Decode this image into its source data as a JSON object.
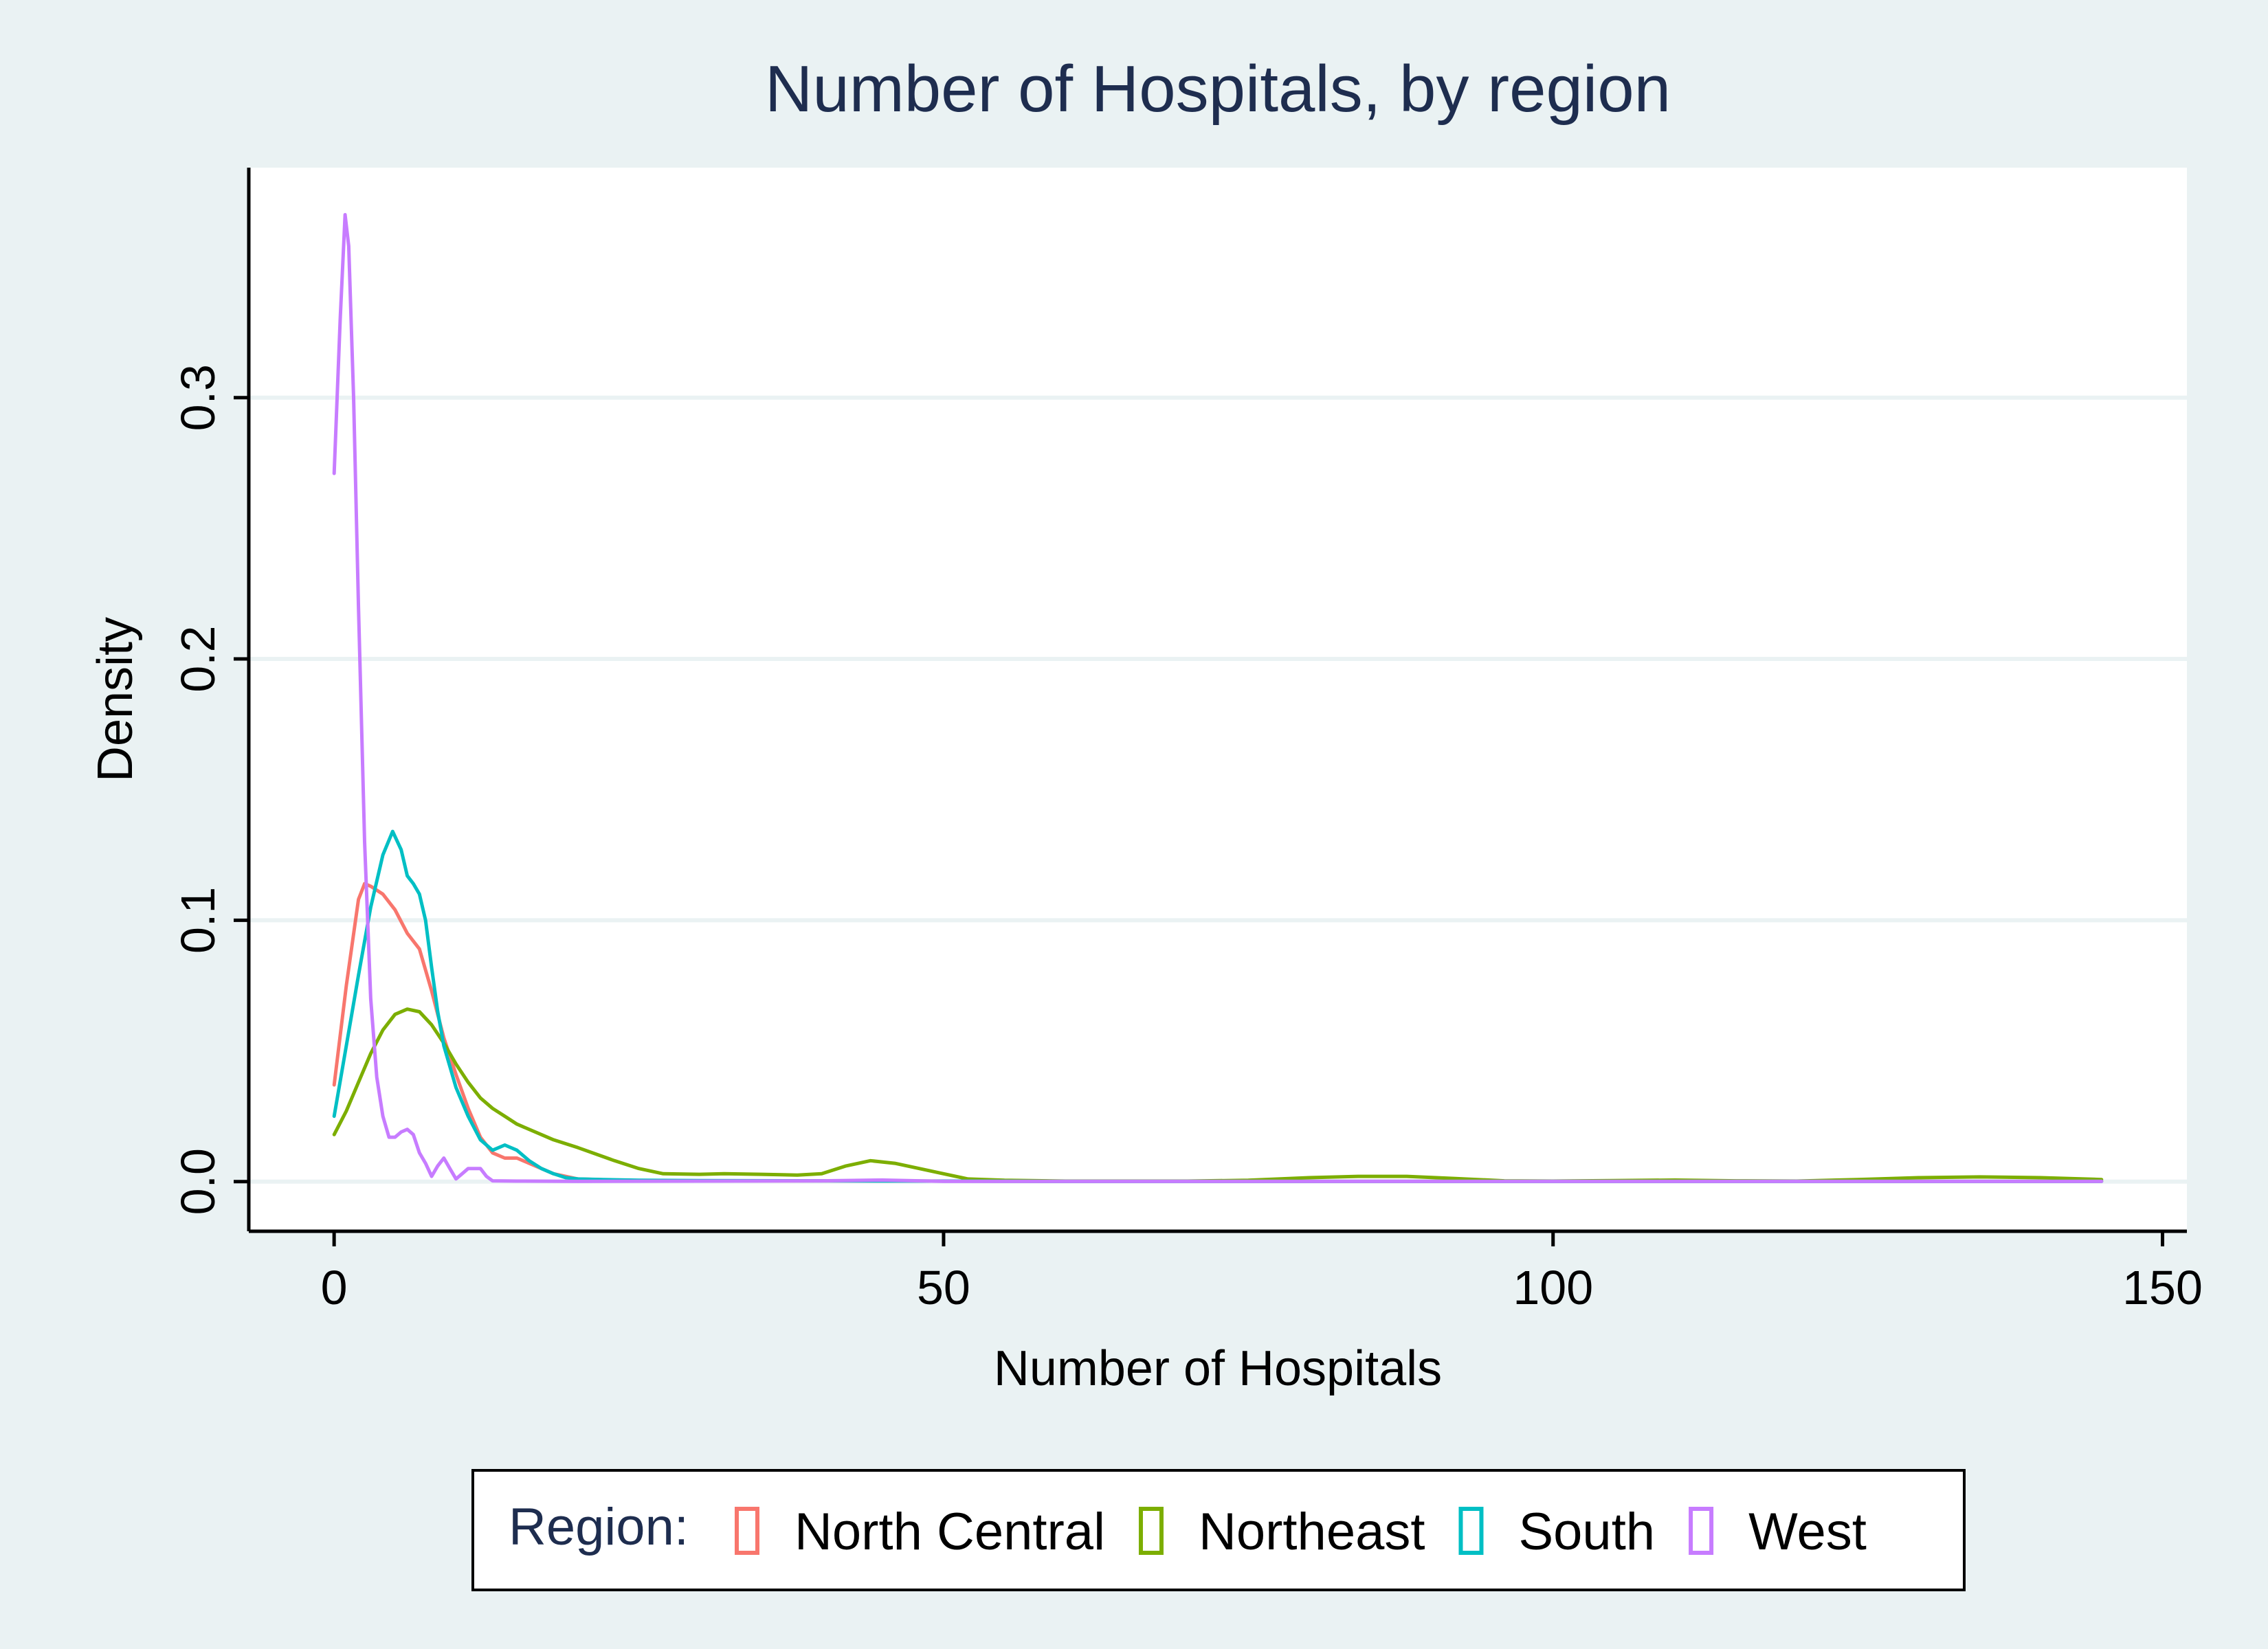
{
  "chart_data": {
    "type": "line",
    "title": "Number of Hospitals, by region",
    "xlabel": "Number of Hospitals",
    "ylabel": "Density",
    "xlim": [
      -7,
      152
    ],
    "ylim": [
      -0.019,
      0.388
    ],
    "xticks": [
      0,
      50,
      100,
      150
    ],
    "xtick_labels": [
      "0",
      "50",
      "100",
      "150"
    ],
    "yticks": [
      0.0,
      0.1,
      0.2,
      0.3
    ],
    "ytick_labels": [
      "0.0",
      "0.1",
      "0.2",
      "0.3"
    ],
    "grid": "horizontal",
    "legend": {
      "title": "Region:",
      "placement": "bottom"
    },
    "series": [
      {
        "name": "North Central",
        "color": "#f8766d",
        "points": [
          [
            0,
            0.037
          ],
          [
            1,
            0.075
          ],
          [
            2,
            0.108
          ],
          [
            2.5,
            0.114
          ],
          [
            3,
            0.113
          ],
          [
            4,
            0.11
          ],
          [
            5,
            0.104
          ],
          [
            6,
            0.095
          ],
          [
            7,
            0.089
          ],
          [
            8,
            0.073
          ],
          [
            9,
            0.055
          ],
          [
            10,
            0.041
          ],
          [
            11,
            0.028
          ],
          [
            12,
            0.017
          ],
          [
            13,
            0.011
          ],
          [
            14,
            0.009
          ],
          [
            15,
            0.009
          ],
          [
            16,
            0.007
          ],
          [
            17,
            0.005
          ],
          [
            18,
            0.003
          ],
          [
            20,
            0.001
          ],
          [
            25,
            0.0003
          ],
          [
            40,
            0.0003
          ],
          [
            60,
            0.0001
          ],
          [
            100,
            0.0001
          ],
          [
            145,
            0.0001
          ]
        ]
      },
      {
        "name": "Northeast",
        "color": "#7cae00",
        "points": [
          [
            0,
            0.018
          ],
          [
            1,
            0.027
          ],
          [
            2,
            0.038
          ],
          [
            3,
            0.049
          ],
          [
            4,
            0.058
          ],
          [
            5,
            0.064
          ],
          [
            6,
            0.066
          ],
          [
            7,
            0.065
          ],
          [
            8,
            0.06
          ],
          [
            9,
            0.053
          ],
          [
            10,
            0.045
          ],
          [
            11,
            0.038
          ],
          [
            12,
            0.032
          ],
          [
            13,
            0.028
          ],
          [
            14,
            0.025
          ],
          [
            15,
            0.022
          ],
          [
            18,
            0.016
          ],
          [
            20,
            0.013
          ],
          [
            23,
            0.008
          ],
          [
            25,
            0.005
          ],
          [
            27,
            0.003
          ],
          [
            30,
            0.0028
          ],
          [
            32,
            0.003
          ],
          [
            35,
            0.0028
          ],
          [
            38,
            0.0025
          ],
          [
            40,
            0.003
          ],
          [
            42,
            0.006
          ],
          [
            44,
            0.008
          ],
          [
            46,
            0.007
          ],
          [
            48,
            0.005
          ],
          [
            50,
            0.003
          ],
          [
            52,
            0.001
          ],
          [
            55,
            0.0005
          ],
          [
            60,
            0.0002
          ],
          [
            70,
            0.0002
          ],
          [
            75,
            0.0005
          ],
          [
            80,
            0.0015
          ],
          [
            84,
            0.002
          ],
          [
            88,
            0.002
          ],
          [
            92,
            0.0012
          ],
          [
            96,
            0.0003
          ],
          [
            100,
            0.0002
          ],
          [
            105,
            0.0004
          ],
          [
            110,
            0.0006
          ],
          [
            115,
            0.0003
          ],
          [
            120,
            0.0002
          ],
          [
            125,
            0.0008
          ],
          [
            130,
            0.0015
          ],
          [
            135,
            0.0018
          ],
          [
            140,
            0.0015
          ],
          [
            145,
            0.0008
          ]
        ]
      },
      {
        "name": "South",
        "color": "#00bfc4",
        "points": [
          [
            0,
            0.025
          ],
          [
            1,
            0.052
          ],
          [
            2,
            0.079
          ],
          [
            3,
            0.105
          ],
          [
            4,
            0.125
          ],
          [
            4.8,
            0.134
          ],
          [
            5.5,
            0.127
          ],
          [
            6,
            0.117
          ],
          [
            6.5,
            0.114
          ],
          [
            7,
            0.11
          ],
          [
            7.5,
            0.1
          ],
          [
            8,
            0.082
          ],
          [
            8.5,
            0.065
          ],
          [
            9,
            0.052
          ],
          [
            10,
            0.036
          ],
          [
            11,
            0.025
          ],
          [
            12,
            0.016
          ],
          [
            13,
            0.012
          ],
          [
            14,
            0.014
          ],
          [
            15,
            0.012
          ],
          [
            16,
            0.008
          ],
          [
            17,
            0.005
          ],
          [
            18,
            0.003
          ],
          [
            19,
            0.0015
          ],
          [
            20,
            0.001
          ],
          [
            22,
            0.0008
          ],
          [
            25,
            0.0005
          ],
          [
            30,
            0.0004
          ],
          [
            40,
            0.0003
          ],
          [
            50,
            0.0002
          ],
          [
            60,
            0.0001
          ],
          [
            100,
            0.0001
          ],
          [
            145,
            0.0001
          ]
        ]
      },
      {
        "name": "West",
        "color": "#c77cff",
        "points": [
          [
            0,
            0.271
          ],
          [
            0.5,
            0.33
          ],
          [
            0.9,
            0.37
          ],
          [
            1.2,
            0.358
          ],
          [
            1.6,
            0.3
          ],
          [
            2,
            0.22
          ],
          [
            2.5,
            0.13
          ],
          [
            3,
            0.07
          ],
          [
            3.5,
            0.04
          ],
          [
            4,
            0.025
          ],
          [
            4.5,
            0.017
          ],
          [
            5,
            0.017
          ],
          [
            5.5,
            0.019
          ],
          [
            6,
            0.02
          ],
          [
            6.5,
            0.018
          ],
          [
            7,
            0.011
          ],
          [
            7.5,
            0.007
          ],
          [
            8,
            0.002
          ],
          [
            8.5,
            0.006
          ],
          [
            9,
            0.009
          ],
          [
            9.5,
            0.005
          ],
          [
            10,
            0.001
          ],
          [
            10.5,
            0.003
          ],
          [
            11,
            0.005
          ],
          [
            11.5,
            0.005
          ],
          [
            12,
            0.005
          ],
          [
            12.5,
            0.002
          ],
          [
            13,
            0.0003
          ],
          [
            15,
            0.0002
          ],
          [
            20,
            0.0001
          ],
          [
            40,
            0.0003
          ],
          [
            45,
            0.0006
          ],
          [
            50,
            0.0001
          ],
          [
            100,
            0.0001
          ],
          [
            145,
            0.0001
          ]
        ]
      }
    ]
  }
}
